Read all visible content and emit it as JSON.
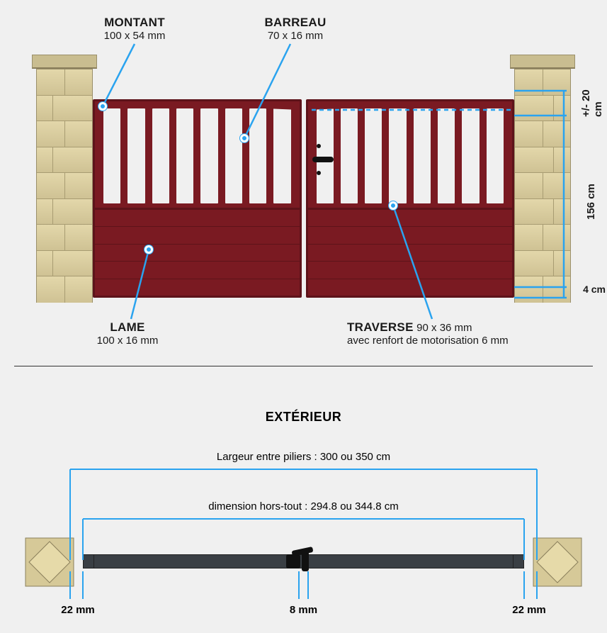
{
  "colors": {
    "gate": "#7a1a22",
    "gate_dark": "#5d131a",
    "stone": "#d8cca0",
    "stone_cap": "#c9bd90",
    "callout": "#2aa3ef",
    "rail": "#3a3f44",
    "bg": "#f0f0f0"
  },
  "gate": {
    "slots_per_leaf": 8,
    "lames_per_leaf": 5
  },
  "labels": {
    "montant": {
      "title": "MONTANT",
      "dim": "100 x 54 mm"
    },
    "barreau": {
      "title": "BARREAU",
      "dim": "70 x 16 mm"
    },
    "lame": {
      "title": "LAME",
      "dim": "100 x 16 mm"
    },
    "traverse": {
      "title": "TRAVERSE",
      "dim": "90 x 36 mm",
      "sub": "avec renfort de motorisation 6 mm"
    }
  },
  "heights": {
    "top_var": "+/- 20 cm",
    "main": "156 cm",
    "ground": "4 cm"
  },
  "exterior": {
    "title": "EXTÉRIEUR",
    "between_pillars": "Largeur entre piliers : 300 ou 350 cm",
    "overall": "dimension hors-tout : 294.8 ou 344.8 cm",
    "gap_side_l": "22 mm",
    "gap_center": "8 mm",
    "gap_side_r": "22 mm"
  }
}
